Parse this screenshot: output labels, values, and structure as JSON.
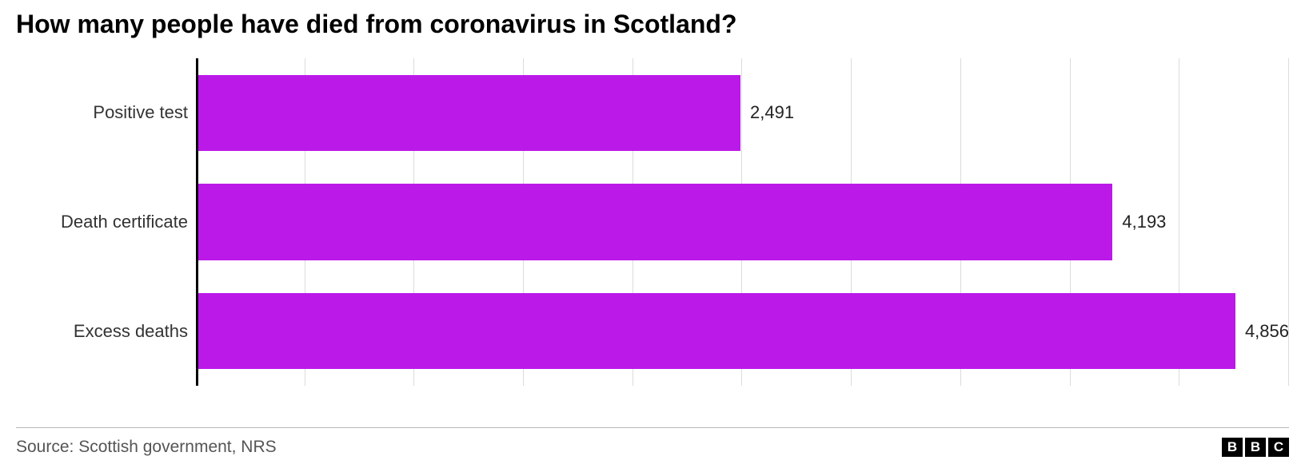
{
  "title": "How many people have died from coronavirus in Scotland?",
  "chart": {
    "type": "bar-horizontal",
    "categories": [
      "Positive test",
      "Death certificate",
      "Excess deaths"
    ],
    "values": [
      2491,
      4193,
      4856
    ],
    "value_labels": [
      "2,491",
      "4,193",
      "4,856"
    ],
    "bar_color": "#bb19e8",
    "xmax": 5000,
    "xtick_step": 500,
    "xtick_count": 10,
    "grid_color": "#dcdcdc",
    "axis_color": "#000000",
    "background_color": "#ffffff",
    "label_fontsize": 22,
    "label_color": "#333333",
    "value_fontsize": 22,
    "value_color": "#222222",
    "bar_height_ratio": 0.7
  },
  "title_style": {
    "fontsize": 32,
    "fontweight": 700,
    "color": "#000000"
  },
  "footer": {
    "source": "Source: Scottish government, NRS",
    "source_fontsize": 21,
    "source_color": "#555555",
    "divider_color": "#b8b8b8",
    "logo": {
      "letters": [
        "B",
        "B",
        "C"
      ],
      "box_bg": "#000000",
      "box_fg": "#ffffff"
    }
  }
}
